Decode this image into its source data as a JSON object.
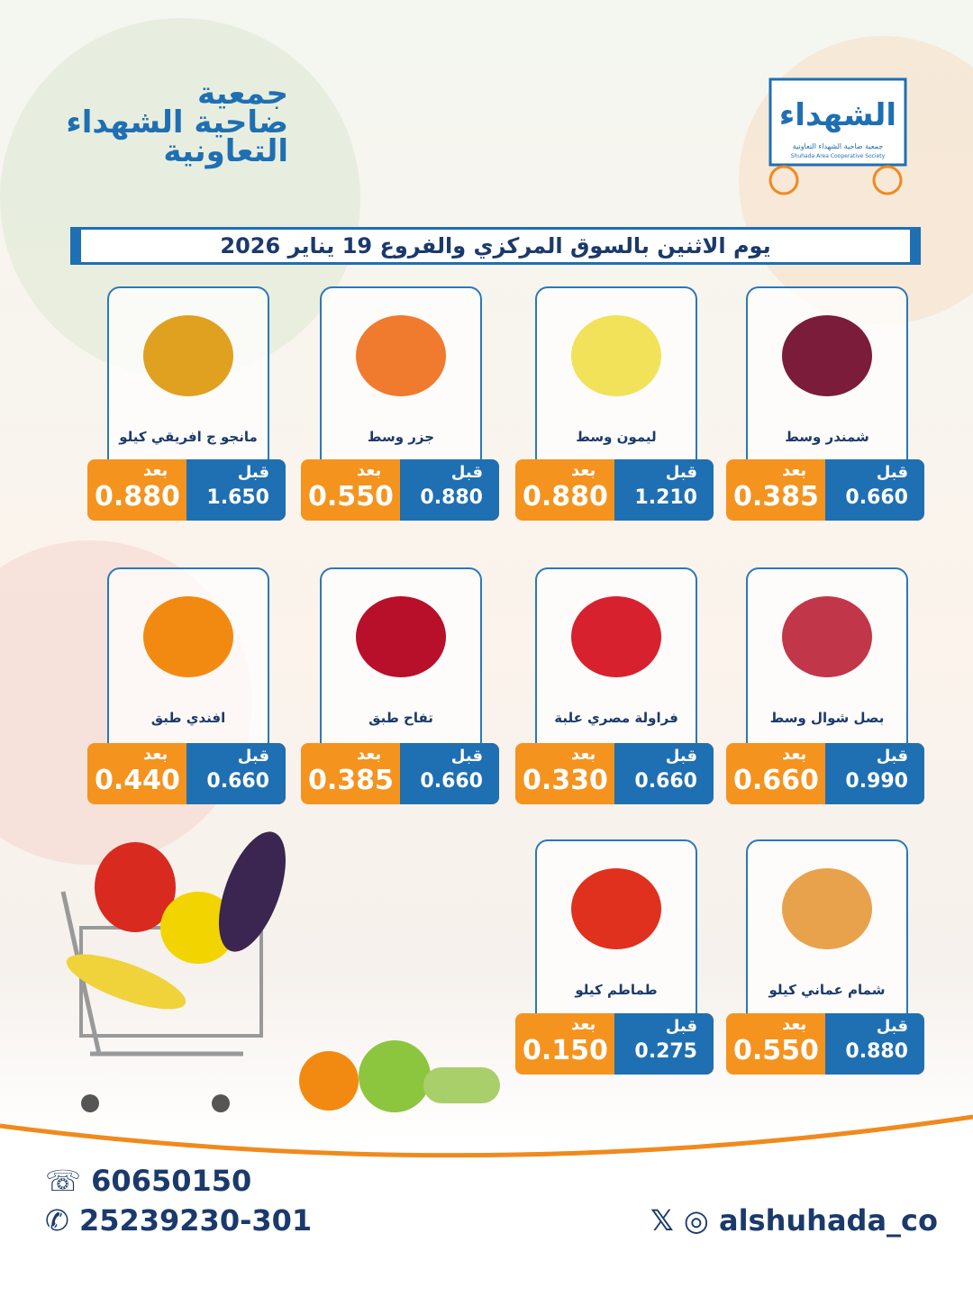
{
  "logo": {
    "main": "الشهداء",
    "arabic": "جمعية ضاحية الشهداء التعاونية",
    "english": "Shuhada Area Cooperative Society"
  },
  "header": {
    "lines": [
      "جمعية",
      "ضاحية الشهداء",
      "التعاونية"
    ]
  },
  "banner": "يوم الاثنين بالسوق المركزي والفروع 19 يناير 2026",
  "labels": {
    "before": "قبل",
    "after": "بعد"
  },
  "products": [
    {
      "name": "شمندر وسط",
      "before": "0.660",
      "after": "0.385"
    },
    {
      "name": "ليمون وسط",
      "before": "1.210",
      "after": "0.880"
    },
    {
      "name": "جزر وسط",
      "before": "0.880",
      "after": "0.550"
    },
    {
      "name": "مانجو ج افريقي كيلو",
      "before": "1.650",
      "after": "0.880"
    },
    {
      "name": "بصل شوال وسط",
      "before": "0.990",
      "after": "0.660"
    },
    {
      "name": "فراولة مصري علبة",
      "before": "0.660",
      "after": "0.330"
    },
    {
      "name": "تفاح طبق",
      "before": "0.660",
      "after": "0.385"
    },
    {
      "name": "افندي طبق",
      "before": "0.660",
      "after": "0.440"
    },
    {
      "name": "شمام عماني كيلو",
      "before": "0.880",
      "after": "0.550"
    },
    {
      "name": "طماطم كيلو",
      "before": "0.275",
      "after": "0.150"
    }
  ],
  "footer": {
    "whatsapp": "60650150",
    "phone": "25239230-301",
    "social": "alshuhada_co"
  }
}
